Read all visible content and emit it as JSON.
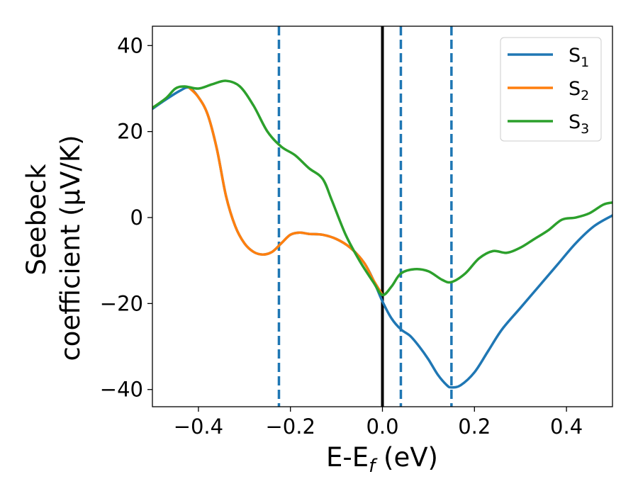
{
  "chart_data": {
    "type": "line",
    "xlabel": "E-E",
    "xlabel_sub": "f",
    "xlabel_unit": " (eV)",
    "ylabel_line1": "Seebeck",
    "ylabel_line2": "coefficient  (μV/K)",
    "xlim": [
      -0.5,
      0.5
    ],
    "ylim": [
      -44,
      44.5
    ],
    "xticks": [
      {
        "value": -0.4,
        "label": "−0.4"
      },
      {
        "value": -0.2,
        "label": "−0.2"
      },
      {
        "value": 0.0,
        "label": "0.0"
      },
      {
        "value": 0.2,
        "label": "0.2"
      },
      {
        "value": 0.4,
        "label": "0.4"
      }
    ],
    "yticks": [
      {
        "value": 40,
        "label": "40"
      },
      {
        "value": 20,
        "label": "20"
      },
      {
        "value": 0,
        "label": "0"
      },
      {
        "value": -20,
        "label": "−20"
      },
      {
        "value": -40,
        "label": "−40"
      }
    ],
    "grid": false,
    "legend_position": "top-right",
    "reference_lines": [
      {
        "x": 0.0,
        "style": "solid",
        "color": "#000000"
      },
      {
        "x": -0.225,
        "style": "dashed",
        "color": "#1f77b4"
      },
      {
        "x": 0.04,
        "style": "dashed",
        "color": "#1f77b4"
      },
      {
        "x": 0.15,
        "style": "dashed",
        "color": "#1f77b4"
      }
    ],
    "series": [
      {
        "name": "S",
        "sub": "1",
        "color": "#1f77b4",
        "points": [
          [
            -0.5,
            25.3
          ],
          [
            -0.47,
            27.5
          ],
          [
            -0.44,
            29.5
          ],
          [
            -0.42,
            30.2
          ],
          [
            -0.4,
            28
          ],
          [
            -0.38,
            24
          ],
          [
            -0.36,
            16
          ],
          [
            -0.34,
            5
          ],
          [
            -0.32,
            -2
          ],
          [
            -0.3,
            -6
          ],
          [
            -0.28,
            -8
          ],
          [
            -0.26,
            -8.6
          ],
          [
            -0.24,
            -8
          ],
          [
            -0.22,
            -6
          ],
          [
            -0.2,
            -4
          ],
          [
            -0.18,
            -3.5
          ],
          [
            -0.16,
            -3.8
          ],
          [
            -0.13,
            -4
          ],
          [
            -0.1,
            -5
          ],
          [
            -0.07,
            -7
          ],
          [
            -0.04,
            -10.5
          ],
          [
            -0.02,
            -14.5
          ],
          [
            0.0,
            -19.5
          ],
          [
            0.02,
            -23.5
          ],
          [
            0.04,
            -26
          ],
          [
            0.06,
            -27.5
          ],
          [
            0.08,
            -30
          ],
          [
            0.1,
            -33
          ],
          [
            0.12,
            -36.5
          ],
          [
            0.14,
            -39
          ],
          [
            0.15,
            -39.5
          ],
          [
            0.17,
            -39
          ],
          [
            0.2,
            -36
          ],
          [
            0.23,
            -31
          ],
          [
            0.26,
            -26
          ],
          [
            0.3,
            -21
          ],
          [
            0.34,
            -16
          ],
          [
            0.38,
            -11
          ],
          [
            0.42,
            -6
          ],
          [
            0.46,
            -2
          ],
          [
            0.5,
            0.5
          ]
        ]
      },
      {
        "name": "S",
        "sub": "2",
        "color": "#ff7f0e",
        "points": [
          [
            -0.42,
            30.2
          ],
          [
            -0.4,
            28
          ],
          [
            -0.38,
            24
          ],
          [
            -0.36,
            16
          ],
          [
            -0.34,
            5
          ],
          [
            -0.32,
            -2
          ],
          [
            -0.3,
            -6
          ],
          [
            -0.28,
            -8
          ],
          [
            -0.26,
            -8.6
          ],
          [
            -0.24,
            -8
          ],
          [
            -0.22,
            -6
          ],
          [
            -0.2,
            -4
          ],
          [
            -0.18,
            -3.5
          ],
          [
            -0.16,
            -3.8
          ],
          [
            -0.13,
            -4
          ],
          [
            -0.1,
            -5
          ],
          [
            -0.07,
            -7
          ],
          [
            -0.04,
            -10.5
          ],
          [
            -0.02,
            -14.5
          ],
          [
            0.0,
            -18
          ]
        ]
      },
      {
        "name": "S",
        "sub": "3",
        "color": "#2ca02c",
        "points": [
          [
            -0.5,
            25.5
          ],
          [
            -0.47,
            27.8
          ],
          [
            -0.45,
            30
          ],
          [
            -0.43,
            30.5
          ],
          [
            -0.4,
            30
          ],
          [
            -0.37,
            31
          ],
          [
            -0.34,
            31.8
          ],
          [
            -0.31,
            30.5
          ],
          [
            -0.28,
            26
          ],
          [
            -0.25,
            20
          ],
          [
            -0.22,
            16.5
          ],
          [
            -0.19,
            14.5
          ],
          [
            -0.16,
            11.5
          ],
          [
            -0.13,
            9
          ],
          [
            -0.11,
            4
          ],
          [
            -0.08,
            -4
          ],
          [
            -0.05,
            -10
          ],
          [
            -0.02,
            -15
          ],
          [
            0.0,
            -18
          ],
          [
            0.02,
            -16
          ],
          [
            0.04,
            -13
          ],
          [
            0.07,
            -12
          ],
          [
            0.1,
            -12.5
          ],
          [
            0.13,
            -14.5
          ],
          [
            0.15,
            -15
          ],
          [
            0.18,
            -13
          ],
          [
            0.21,
            -9.5
          ],
          [
            0.24,
            -7.8
          ],
          [
            0.27,
            -8.2
          ],
          [
            0.3,
            -7
          ],
          [
            0.33,
            -5
          ],
          [
            0.36,
            -3
          ],
          [
            0.39,
            -0.5
          ],
          [
            0.42,
            0
          ],
          [
            0.45,
            1
          ],
          [
            0.48,
            3
          ],
          [
            0.5,
            3.5
          ]
        ]
      }
    ]
  }
}
